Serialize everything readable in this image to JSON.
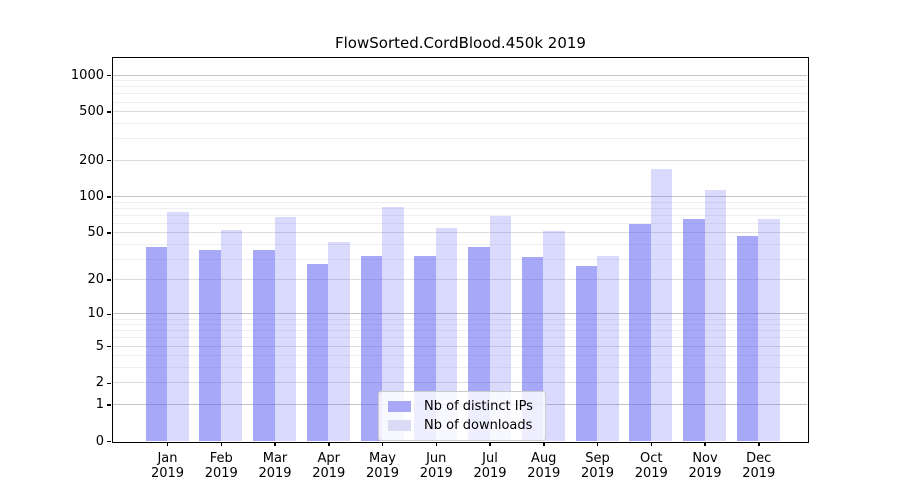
{
  "chart_data": {
    "type": "bar",
    "title": "FlowSorted.CordBlood.450k 2019",
    "categories": [
      "Jan",
      "Feb",
      "Mar",
      "Apr",
      "May",
      "Jun",
      "Jul",
      "Aug",
      "Sep",
      "Oct",
      "Nov",
      "Dec"
    ],
    "category_year_line": "2019",
    "series": [
      {
        "name": "Nb of distinct IPs",
        "values": [
          38,
          36,
          36,
          27,
          32,
          32,
          38,
          31,
          26,
          59,
          65,
          47
        ],
        "bar_color": "rgba(102,102,245,0.57)",
        "legend_color": "#a8a8f6"
      },
      {
        "name": "Nb of downloads",
        "values": [
          74,
          53,
          67,
          42,
          82,
          55,
          69,
          52,
          32,
          170,
          113,
          65
        ],
        "bar_color": "rgba(102,102,245,0.24)",
        "legend_color": "#dbdbf8"
      }
    ],
    "xlabel": "",
    "ylabel": "",
    "yscale": "log1p",
    "ylim": [
      0,
      1380
    ],
    "yticks": [
      1000,
      500,
      200,
      100,
      50,
      20,
      10,
      5,
      2,
      1,
      0
    ],
    "grid": "on",
    "grid_major": [
      1,
      10,
      100,
      1000
    ],
    "grid_mid": [
      2,
      5,
      20,
      50,
      200,
      500
    ],
    "grid_minor": [
      3,
      4,
      6,
      7,
      8,
      9,
      30,
      40,
      60,
      70,
      80,
      90,
      300,
      400,
      600,
      700,
      800,
      900
    ],
    "legend_position": "lower center",
    "colors": {
      "grid_major": "#c3c3c6",
      "grid_mid": "#dcdcdf",
      "grid_minor": "#efeff1",
      "spine": "#000000",
      "text": "#000000"
    }
  }
}
